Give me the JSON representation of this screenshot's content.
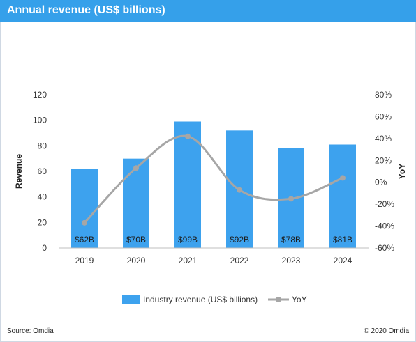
{
  "header": {
    "title": "Annual revenue (US$ billions)"
  },
  "footer": {
    "source": "Source:  Omdia",
    "copyright": "© 2020 Omdia"
  },
  "colors": {
    "header": "#35a0ea",
    "bars": "#3da2ee",
    "line": "#a6a6a6",
    "grid": "#d9d9d9"
  },
  "chart_data": {
    "type": "bar",
    "categories": [
      "2019",
      "2020",
      "2021",
      "2022",
      "2023",
      "2024"
    ],
    "series": [
      {
        "name": "Industry revenue (US$ billions)",
        "type": "bar",
        "axis": "left",
        "values": [
          62,
          70,
          99,
          92,
          78,
          81
        ],
        "labels": [
          "$62B",
          "$70B",
          "$99B",
          "$92B",
          "$78B",
          "$81B"
        ]
      },
      {
        "name": "YoY",
        "type": "line",
        "axis": "right",
        "smooth": true,
        "values": [
          -0.37,
          0.13,
          0.42,
          -0.07,
          -0.15,
          0.04
        ]
      }
    ],
    "ylabel": "Revenue",
    "y2label": "YoY",
    "ylim": [
      0,
      120
    ],
    "y2lim": [
      -0.6,
      0.8
    ],
    "yticks": [
      "0",
      "20",
      "40",
      "60",
      "80",
      "100",
      "120"
    ],
    "y2ticks": [
      "-60%",
      "-40%",
      "-20%",
      "0%",
      "20%",
      "40%",
      "60%",
      "80%"
    ],
    "legend_position": "bottom",
    "grid": false
  }
}
